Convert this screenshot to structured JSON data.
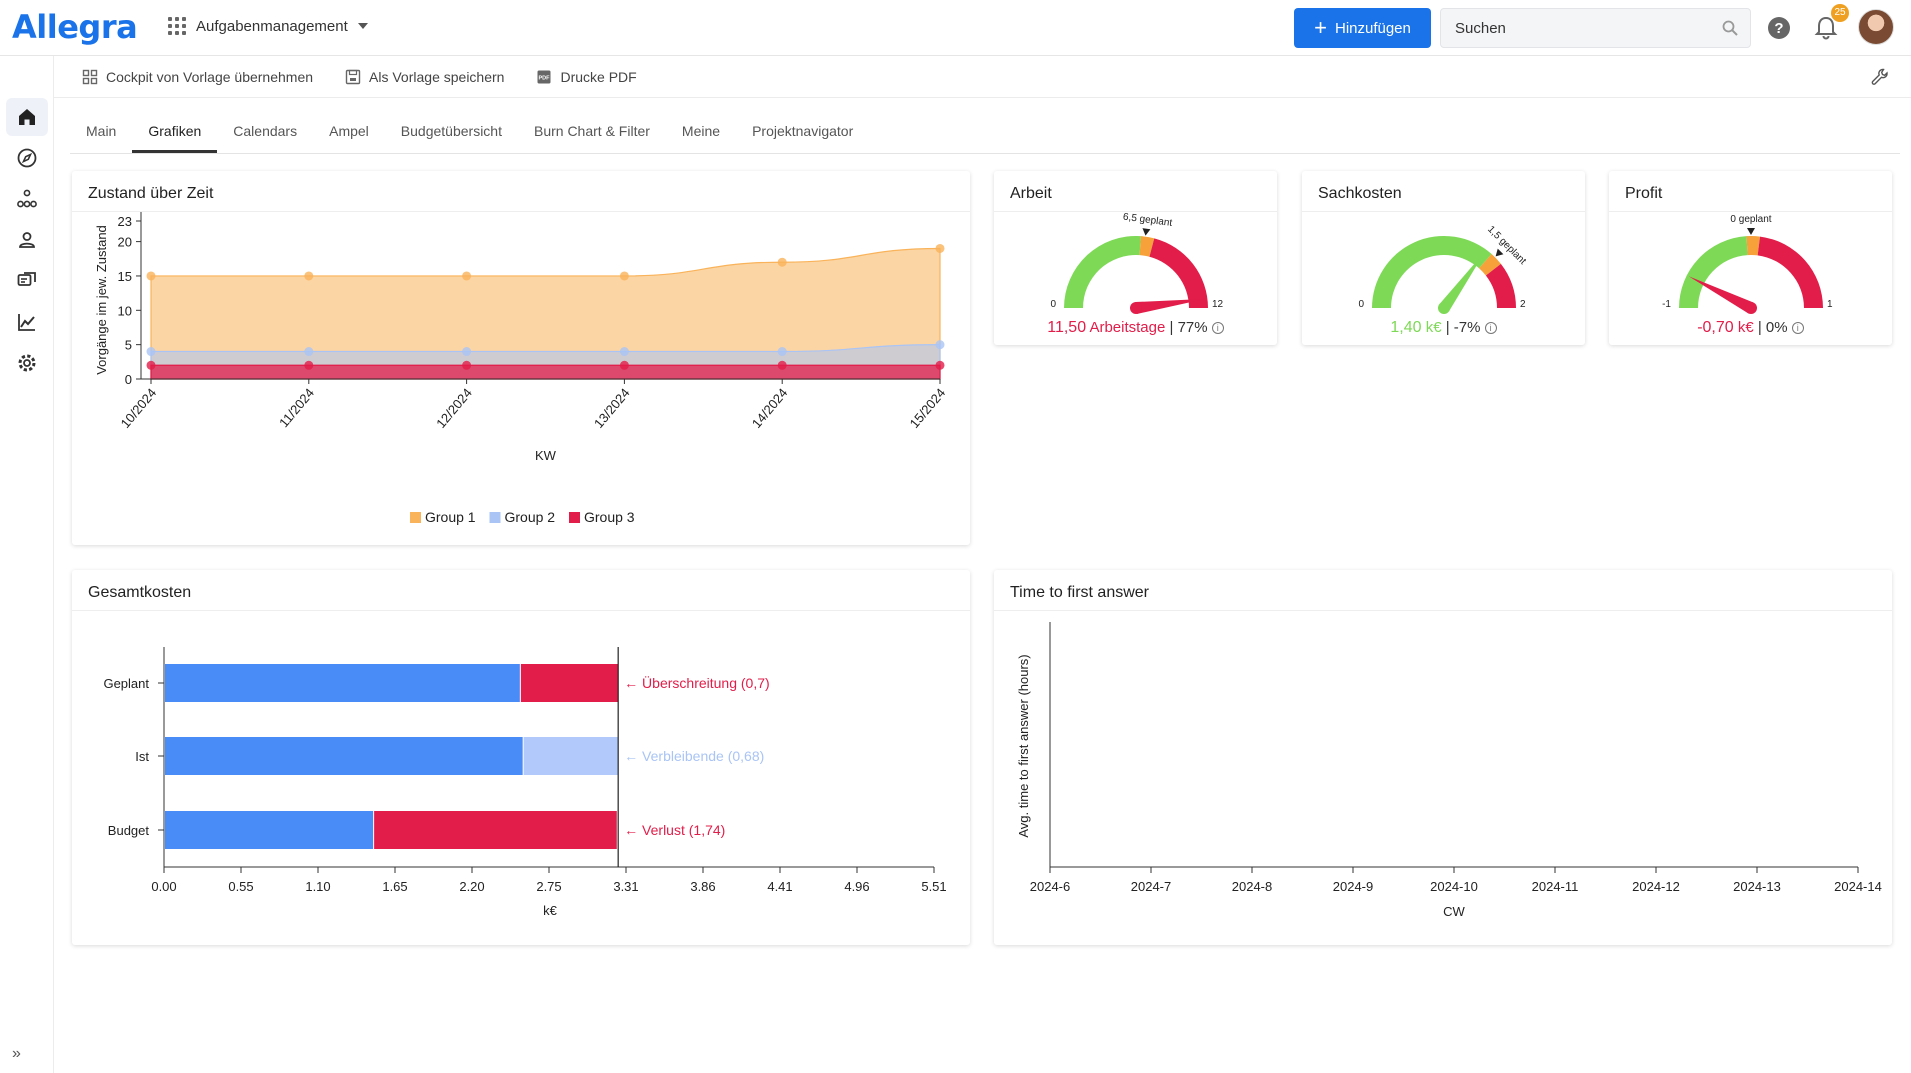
{
  "header": {
    "logo": "Allegra",
    "app_switcher": "Aufgabenmanagement",
    "add_label": "Hinzufügen",
    "search_placeholder": "Suchen",
    "notification_count": "25"
  },
  "toolbar": {
    "copy_template": "Cockpit von Vorlage übernehmen",
    "save_template": "Als Vorlage speichern",
    "print_pdf": "Drucke PDF"
  },
  "tabs": [
    {
      "label": "Main"
    },
    {
      "label": "Grafiken",
      "active": true
    },
    {
      "label": "Calendars"
    },
    {
      "label": "Ampel"
    },
    {
      "label": "Budgetübersicht"
    },
    {
      "label": "Burn Chart & Filter"
    },
    {
      "label": "Meine"
    },
    {
      "label": "Projektnavigator"
    }
  ],
  "cards": {
    "zustand": {
      "title": "Zustand über Zeit"
    },
    "arbeit": {
      "title": "Arbeit"
    },
    "sachkosten": {
      "title": "Sachkosten"
    },
    "profit": {
      "title": "Profit"
    },
    "gesamt": {
      "title": "Gesamtkosten"
    },
    "ttfa": {
      "title": "Time to first answer"
    }
  },
  "chart_data": [
    {
      "id": "zustand",
      "type": "area",
      "stacked": false,
      "categories": [
        "10/2024",
        "11/2024",
        "12/2024",
        "13/2024",
        "14/2024",
        "15/2024"
      ],
      "series": [
        {
          "name": "Group 1",
          "color": "#f9b35a",
          "values": [
            15,
            15,
            15,
            15,
            17,
            19
          ]
        },
        {
          "name": "Group 2",
          "color": "#a9c4f5",
          "values": [
            4,
            4,
            4,
            4,
            4,
            5
          ]
        },
        {
          "name": "Group 3",
          "color": "#e21d49",
          "values": [
            2,
            2,
            2,
            2,
            2,
            2
          ]
        }
      ],
      "xlabel": "KW",
      "ylabel": "Vorgänge im jew. Zustand",
      "yticks": [
        0,
        5,
        10,
        15,
        20,
        23
      ],
      "ylim": [
        0,
        23
      ],
      "legend": "bottom-center"
    },
    {
      "id": "arbeit",
      "type": "gauge",
      "min": 0,
      "max": 12,
      "value": 11.5,
      "planned": 6.5,
      "min_label": "0",
      "max_label": "12",
      "planned_label": "6,5 geplant",
      "value_text": "11,50",
      "unit": "Arbeitstage",
      "percent": "77%",
      "value_color": "#e21d49"
    },
    {
      "id": "sachkosten",
      "type": "gauge",
      "min": 0,
      "max": 2,
      "value": 1.4,
      "planned": 1.5,
      "min_label": "0",
      "max_label": "2",
      "planned_label": "1,5 geplant",
      "value_text": "1,40",
      "unit": "k€",
      "percent": "-7%",
      "value_color": "#7ed957"
    },
    {
      "id": "profit",
      "type": "gauge",
      "min": -1,
      "max": 1,
      "value": -0.7,
      "planned": 0,
      "min_label": "-1",
      "max_label": "1",
      "planned_label": "0 geplant",
      "value_text": "-0,70",
      "unit": "k€",
      "percent": "0%",
      "value_color": "#e21d49"
    },
    {
      "id": "gesamt",
      "type": "bar",
      "orientation": "horizontal",
      "stacked": true,
      "categories": [
        "Geplant",
        "Ist",
        "Budget"
      ],
      "segments": [
        {
          "base": 2.55,
          "base_color": "#4a8cf7",
          "extra": 0.7,
          "extra_color": "#e21d49",
          "annotation": "← Überschreitung (0,7)",
          "annotation_color": "#e21d49"
        },
        {
          "base": 2.57,
          "base_color": "#4a8cf7",
          "extra": 0.68,
          "extra_color": "#b2c9fb",
          "annotation": "← Verbleibende (0,68)",
          "annotation_color": "#a9c4f5"
        },
        {
          "base": 1.5,
          "base_color": "#4a8cf7",
          "extra": 1.74,
          "extra_color": "#e21d49",
          "annotation": "← Verlust (1,74)",
          "annotation_color": "#e21d49"
        }
      ],
      "reference_line": 3.25,
      "xticks": [
        "0.00",
        "0.55",
        "1.10",
        "1.65",
        "2.20",
        "2.75",
        "3.31",
        "3.86",
        "4.41",
        "4.96",
        "5.51"
      ],
      "xlim": [
        0,
        5.51
      ],
      "xlabel": "k€"
    },
    {
      "id": "ttfa",
      "type": "line",
      "categories": [
        "2024-6",
        "2024-7",
        "2024-8",
        "2024-9",
        "2024-10",
        "2024-11",
        "2024-12",
        "2024-13",
        "2024-14"
      ],
      "series": [],
      "xlabel": "CW",
      "ylabel": "Avg. time to first answer (hours)"
    }
  ]
}
